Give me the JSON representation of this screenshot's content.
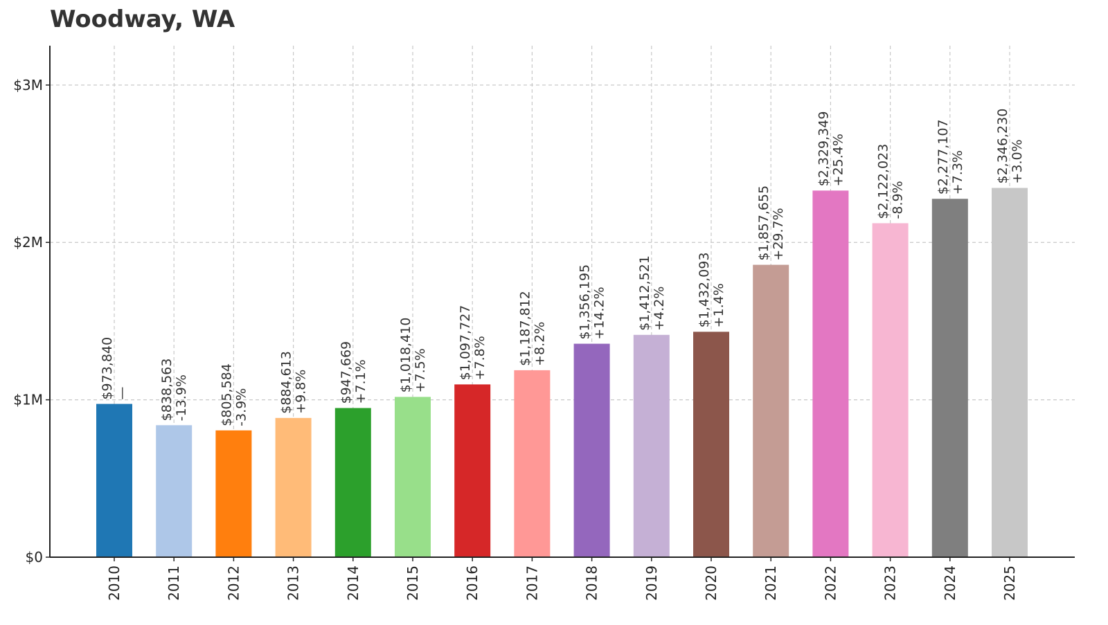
{
  "chart_data": {
    "type": "bar",
    "title": "Woodway, WA",
    "xlabel": "",
    "ylabel": "",
    "categories": [
      "2010",
      "2011",
      "2012",
      "2013",
      "2014",
      "2015",
      "2016",
      "2017",
      "2018",
      "2019",
      "2020",
      "2021",
      "2022",
      "2023",
      "2024",
      "2025"
    ],
    "values": [
      973840,
      838563,
      805584,
      884613,
      947669,
      1018410,
      1097727,
      1187812,
      1356195,
      1412521,
      1432093,
      1857655,
      2329349,
      2122023,
      2277107,
      2346230
    ],
    "value_labels": [
      "$973,840",
      "$838,563",
      "$805,584",
      "$884,613",
      "$947,669",
      "$1,018,410",
      "$1,097,727",
      "$1,187,812",
      "$1,356,195",
      "$1,412,521",
      "$1,432,093",
      "$1,857,655",
      "$2,329,349",
      "$2,122,023",
      "$2,277,107",
      "$2,346,230"
    ],
    "change_labels": [
      "—",
      "-13.9%",
      "-3.9%",
      "+9.8%",
      "+7.1%",
      "+7.5%",
      "+7.8%",
      "+8.2%",
      "+14.2%",
      "+4.2%",
      "+1.4%",
      "+29.7%",
      "+25.4%",
      "-8.9%",
      "+7.3%",
      "+3.0%"
    ],
    "colors": [
      "#1f77b4",
      "#aec7e8",
      "#ff7f0e",
      "#ffbb78",
      "#2ca02c",
      "#98df8a",
      "#d62728",
      "#ff9896",
      "#9467bd",
      "#c5b0d5",
      "#8c564b",
      "#c49c94",
      "#e377c2",
      "#f7b6d2",
      "#7f7f7f",
      "#c7c7c7"
    ],
    "ylim": [
      0,
      3250000
    ],
    "yticks": [
      {
        "value": 0,
        "label": "$0"
      },
      {
        "value": 1000000,
        "label": "$1M"
      },
      {
        "value": 2000000,
        "label": "$2M"
      },
      {
        "value": 3000000,
        "label": "$3M"
      }
    ],
    "grid": true,
    "legend": "none"
  }
}
